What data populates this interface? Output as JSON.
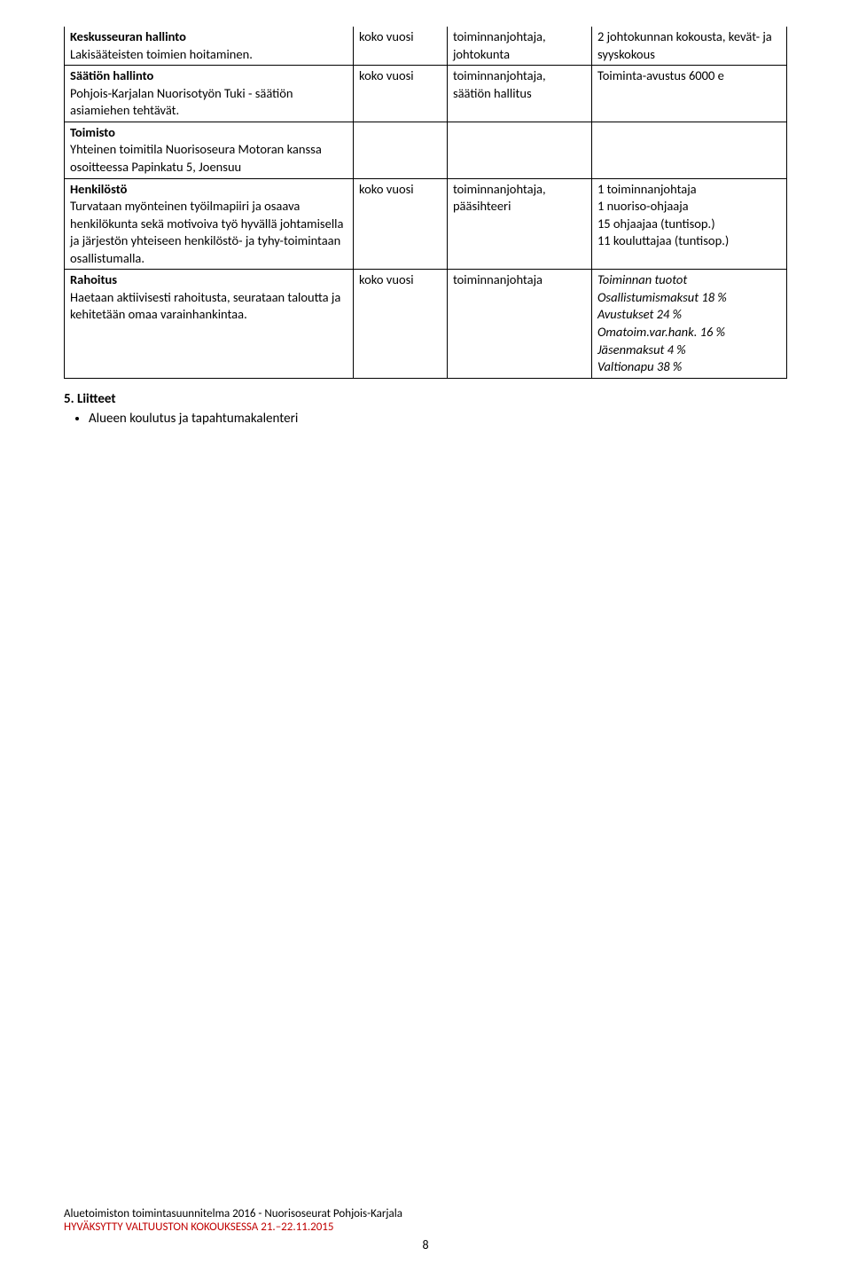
{
  "table": {
    "rows": [
      {
        "c1_bold": "Keskusseuran hallinto",
        "c1_body": "Lakisääteisten toimien hoitaminen.",
        "c2": "koko vuosi",
        "c3": "toiminnanjohtaja, johtokunta",
        "c4": "2 johtokunnan kokousta, kevät- ja syyskokous",
        "top_open": true
      },
      {
        "c1_bold": "Säätiön hallinto",
        "c1_body": "Pohjois-Karjalan Nuorisotyön Tuki - säätiön asiamiehen tehtävät.",
        "c2": "koko vuosi",
        "c3": "toiminnanjohtaja, säätiön hallitus",
        "c4": "Toiminta-avustus 6000 e"
      },
      {
        "c1_bold": "Toimisto",
        "c1_body": "Yhteinen toimitila Nuorisoseura Motoran kanssa osoitteessa Papinkatu 5, Joensuu",
        "c2": "",
        "c3": "",
        "c4": ""
      },
      {
        "c1_bold": "Henkilöstö",
        "c1_body": "Turvataan myönteinen työilmapiiri ja osaava henkilökunta sekä motivoiva työ hyvällä johtamisella ja järjestön yhteiseen henkilöstö- ja tyhy-toimintaan osallistumalla.",
        "c2": "koko vuosi",
        "c3": "toiminnanjohtaja, pääsihteeri",
        "c4_lines": [
          "1 toiminnanjohtaja",
          "1 nuoriso-ohjaaja",
          "15 ohjaajaa (tuntisop.)",
          "11 kouluttajaa (tuntisop.)"
        ]
      },
      {
        "c1_bold": "Rahoitus",
        "c1_body": "Haetaan aktiivisesti rahoitusta, seurataan taloutta ja kehitetään omaa varainhankintaa.",
        "c2": "koko vuosi",
        "c3": "toiminnanjohtaja",
        "c4_italic_lines": [
          "Toiminnan tuotot",
          "Osallistumismaksut 18 %",
          " Avustukset 24 %",
          " Omatoim.var.hank. 16 %",
          "Jäsenmaksut 4 %",
          "Valtionapu 38 %"
        ]
      }
    ]
  },
  "section": {
    "heading": "5. Liitteet",
    "bullet": "Alueen koulutus ja tapahtumakalenteri"
  },
  "footer": {
    "line1": "Aluetoimiston toimintasuunnitelma 2016 - Nuorisoseurat Pohjois-Karjala",
    "line2": "HYVÄKSYTTY VALTUUSTON KOKOUKSESSA 21.–22.11.2015",
    "page": "8"
  }
}
